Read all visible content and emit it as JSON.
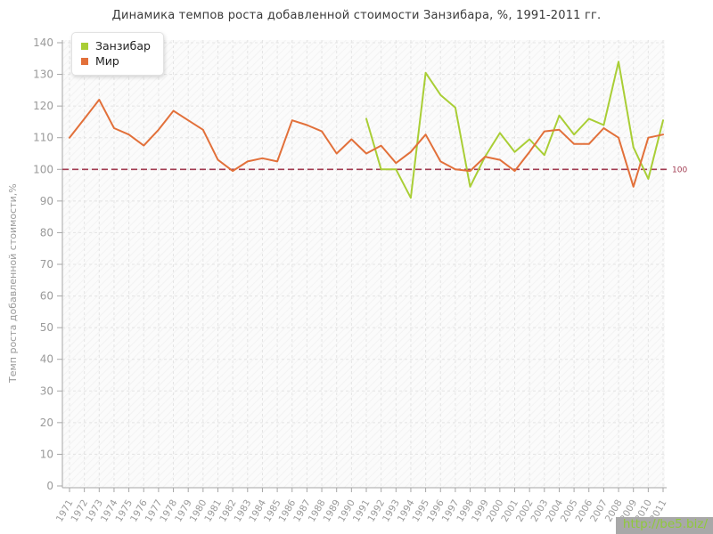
{
  "watermark": {
    "text": "http://be5.biz/",
    "color": "#8fc93a",
    "bg": "#a8a8a8"
  },
  "chart_data": {
    "type": "line",
    "title": "Динамика темпов роста добавленной стоимости Занзибара, %, 1991-2011 гг.",
    "ylabel": "Темп роста добавленной стоимости,%",
    "xlabel": "",
    "x": [
      "1971",
      "1972",
      "1973",
      "1974",
      "1975",
      "1976",
      "1977",
      "1978",
      "1979",
      "1980",
      "1981",
      "1982",
      "1983",
      "1984",
      "1985",
      "1986",
      "1987",
      "1988",
      "1989",
      "1990",
      "1991",
      "1992",
      "1993",
      "1994",
      "1995",
      "1996",
      "1997",
      "1998",
      "1999",
      "2000",
      "2001",
      "2002",
      "2003",
      "2004",
      "2005",
      "2006",
      "2007",
      "2008",
      "2009",
      "2010",
      "2011"
    ],
    "ylim": [
      0,
      140
    ],
    "ytick_step": 10,
    "grid": true,
    "legend_position": "top-left",
    "refline": {
      "value": 100,
      "label": "100",
      "color": "#a23c52"
    },
    "series": [
      {
        "name": "Занзибар",
        "color": "#a9ce35",
        "values": [
          null,
          null,
          null,
          null,
          null,
          null,
          null,
          null,
          null,
          null,
          null,
          null,
          null,
          null,
          null,
          null,
          null,
          null,
          null,
          null,
          116,
          100,
          100,
          91,
          130.5,
          123.5,
          119.5,
          94.5,
          104,
          111.5,
          105.5,
          109.5,
          104.5,
          117,
          111,
          116,
          114,
          134,
          107,
          97,
          115.5
        ]
      },
      {
        "name": "Мир",
        "color": "#e2703a",
        "values": [
          110,
          116,
          122,
          113,
          111,
          107.5,
          112.5,
          118.5,
          115.5,
          112.5,
          103,
          99.5,
          102.5,
          103.5,
          102.5,
          115.5,
          114,
          112,
          105,
          109.5,
          105,
          107.5,
          102,
          105.5,
          111,
          102.5,
          100,
          99.5,
          104,
          103,
          99.5,
          105.5,
          112,
          112.5,
          108,
          108,
          113,
          110,
          94.5,
          110,
          111
        ]
      }
    ]
  }
}
